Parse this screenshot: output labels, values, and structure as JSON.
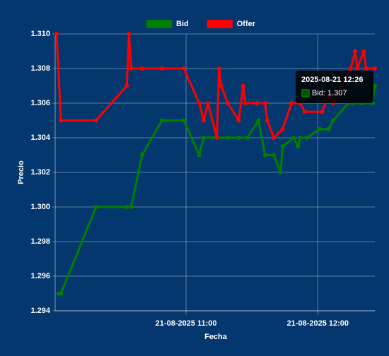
{
  "chart_data": {
    "type": "line",
    "x_label": "Fecha",
    "y_label": "Precio",
    "xlim": [
      "2025-08-21 10:01",
      "2025-08-21 12:26"
    ],
    "xticks": [
      {
        "value": "2025-08-21 11:00",
        "label": "21-08-2025 11:00"
      },
      {
        "value": "2025-08-21 12:00",
        "label": "21-08-2025 12:00"
      }
    ],
    "ylim": [
      1.294,
      1.31
    ],
    "yticks": [
      1.294,
      1.296,
      1.298,
      {
        "value": 1.3,
        "label": "1.300"
      },
      1.302,
      1.304,
      1.306,
      1.308,
      {
        "value": 1.31,
        "label": "1.310"
      }
    ],
    "grid": true,
    "legend": "top",
    "series": [
      {
        "name": "Bid",
        "color": "#008000",
        "x": [
          "2025-08-21 10:02",
          "2025-08-21 10:03",
          "2025-08-21 10:19",
          "2025-08-21 10:33",
          "2025-08-21 10:35",
          "2025-08-21 10:40",
          "2025-08-21 10:49",
          "2025-08-21 10:59",
          "2025-08-21 11:06",
          "2025-08-21 11:08",
          "2025-08-21 11:14",
          "2025-08-21 11:19",
          "2025-08-21 11:24",
          "2025-08-21 11:28",
          "2025-08-21 11:33",
          "2025-08-21 11:36",
          "2025-08-21 11:40",
          "2025-08-21 11:43",
          "2025-08-21 11:44",
          "2025-08-21 11:49",
          "2025-08-21 11:51",
          "2025-08-21 11:52",
          "2025-08-21 11:55",
          "2025-08-21 12:01",
          "2025-08-21 12:05",
          "2025-08-21 12:07",
          "2025-08-21 12:14",
          "2025-08-21 12:16",
          "2025-08-21 12:20",
          "2025-08-21 12:25",
          "2025-08-21 12:26"
        ],
        "values": [
          1.295,
          1.295,
          1.3,
          1.3,
          1.3,
          1.303,
          1.305,
          1.305,
          1.303,
          1.304,
          1.304,
          1.304,
          1.304,
          1.304,
          1.305,
          1.303,
          1.303,
          1.302,
          1.3035,
          1.304,
          1.3035,
          1.304,
          1.304,
          1.3045,
          1.3045,
          1.305,
          1.306,
          1.306,
          1.306,
          1.306,
          1.307
        ]
      },
      {
        "name": "Offer",
        "color": "#ff0000",
        "x": [
          "2025-08-21 10:01",
          "2025-08-21 10:03",
          "2025-08-21 10:19",
          "2025-08-21 10:33",
          "2025-08-21 10:34",
          "2025-08-21 10:35",
          "2025-08-21 10:40",
          "2025-08-21 10:49",
          "2025-08-21 10:59",
          "2025-08-21 11:06",
          "2025-08-21 11:08",
          "2025-08-21 11:10",
          "2025-08-21 11:14",
          "2025-08-21 11:15",
          "2025-08-21 11:16",
          "2025-08-21 11:19",
          "2025-08-21 11:24",
          "2025-08-21 11:26",
          "2025-08-21 11:27",
          "2025-08-21 11:32",
          "2025-08-21 11:36",
          "2025-08-21 11:37",
          "2025-08-21 11:40",
          "2025-08-21 11:44",
          "2025-08-21 11:48",
          "2025-08-21 11:52",
          "2025-08-21 11:54",
          "2025-08-21 12:02",
          "2025-08-21 12:05",
          "2025-08-21 12:07",
          "2025-08-21 12:15",
          "2025-08-21 12:17",
          "2025-08-21 12:18",
          "2025-08-21 12:21",
          "2025-08-21 12:22",
          "2025-08-21 12:26"
        ],
        "values": [
          1.31,
          1.305,
          1.305,
          1.307,
          1.31,
          1.308,
          1.308,
          1.308,
          1.308,
          1.306,
          1.305,
          1.306,
          1.304,
          1.308,
          1.307,
          1.306,
          1.305,
          1.307,
          1.306,
          1.306,
          1.306,
          1.305,
          1.304,
          1.3045,
          1.306,
          1.306,
          1.3055,
          1.3055,
          1.3065,
          1.306,
          1.308,
          1.309,
          1.308,
          1.309,
          1.308,
          1.308
        ]
      }
    ],
    "tooltip": {
      "title": "2025-08-21 12:26",
      "body": "Bid: 1.307"
    }
  }
}
